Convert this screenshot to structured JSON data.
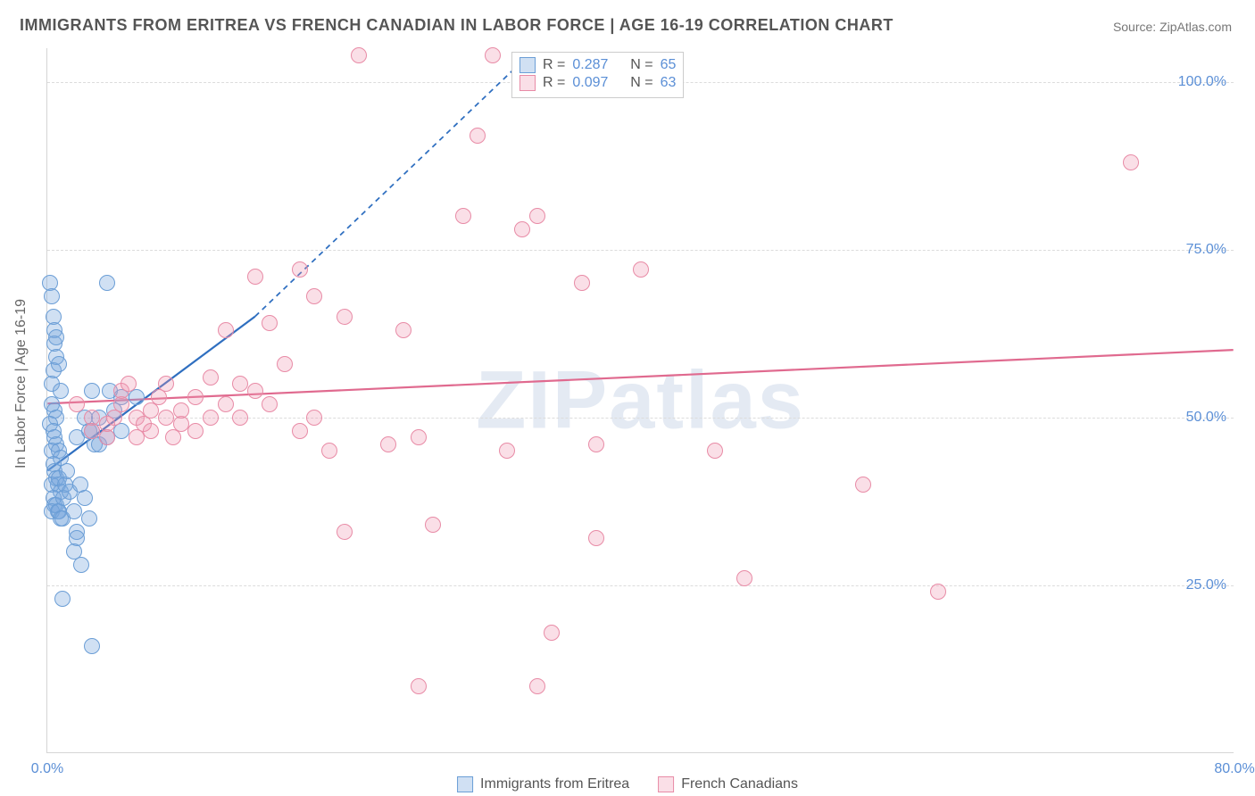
{
  "title": "IMMIGRANTS FROM ERITREA VS FRENCH CANADIAN IN LABOR FORCE | AGE 16-19 CORRELATION CHART",
  "source_label": "Source: ",
  "source_name": "ZipAtlas.com",
  "watermark": "ZIPatlas",
  "chart": {
    "type": "scatter",
    "background_color": "#ffffff",
    "grid_color": "#dcdcdc",
    "axis_color": "#d5d5d5",
    "y_axis_title": "In Labor Force | Age 16-19",
    "axis_title_color": "#666666",
    "axis_title_fontsize": 16,
    "tick_label_color": "#5b8fd6",
    "tick_label_fontsize": 16,
    "xlim": [
      0,
      80
    ],
    "ylim": [
      0,
      105
    ],
    "x_ticks": [
      {
        "v": 0,
        "label": "0.0%"
      },
      {
        "v": 80,
        "label": "80.0%"
      }
    ],
    "y_ticks": [
      {
        "v": 25,
        "label": "25.0%"
      },
      {
        "v": 50,
        "label": "50.0%"
      },
      {
        "v": 75,
        "label": "75.0%"
      },
      {
        "v": 100,
        "label": "100.0%"
      }
    ],
    "marker_radius": 9,
    "marker_border_width": 1.2,
    "series": [
      {
        "id": "eritrea",
        "label": "Immigrants from Eritrea",
        "fill": "rgba(120,165,220,0.35)",
        "stroke": "#6b9ed6",
        "R": "0.287",
        "N": "65",
        "trend": {
          "x1": 0,
          "y1": 42,
          "x2": 14,
          "y2": 65,
          "dash_x2": 32,
          "dash_y2": 103,
          "color": "#2f6fc0",
          "width": 2.2,
          "dash": "6 5"
        },
        "points": [
          [
            0.2,
            70
          ],
          [
            0.3,
            68
          ],
          [
            0.4,
            65
          ],
          [
            0.5,
            63
          ],
          [
            0.5,
            61
          ],
          [
            0.6,
            62
          ],
          [
            0.6,
            59
          ],
          [
            0.4,
            57
          ],
          [
            0.3,
            55
          ],
          [
            0.8,
            58
          ],
          [
            0.9,
            54
          ],
          [
            0.3,
            52
          ],
          [
            0.5,
            51
          ],
          [
            0.6,
            50
          ],
          [
            0.2,
            49
          ],
          [
            0.4,
            48
          ],
          [
            0.5,
            47
          ],
          [
            0.6,
            46
          ],
          [
            0.3,
            45
          ],
          [
            0.8,
            45
          ],
          [
            0.9,
            44
          ],
          [
            0.4,
            43
          ],
          [
            0.5,
            42
          ],
          [
            0.6,
            41
          ],
          [
            0.7,
            40
          ],
          [
            0.3,
            40
          ],
          [
            0.8,
            41
          ],
          [
            0.9,
            39
          ],
          [
            0.4,
            38
          ],
          [
            0.5,
            37
          ],
          [
            0.6,
            37
          ],
          [
            0.7,
            36
          ],
          [
            0.3,
            36
          ],
          [
            0.8,
            36
          ],
          [
            0.9,
            35
          ],
          [
            1.0,
            35
          ],
          [
            1.1,
            38
          ],
          [
            1.2,
            40
          ],
          [
            1.3,
            42
          ],
          [
            1.5,
            39
          ],
          [
            1.8,
            36
          ],
          [
            2.0,
            33
          ],
          [
            2.2,
            40
          ],
          [
            2.5,
            38
          ],
          [
            2.0,
            32
          ],
          [
            1.8,
            30
          ],
          [
            2.3,
            28
          ],
          [
            3.0,
            16
          ],
          [
            1.0,
            23
          ],
          [
            2.8,
            35
          ],
          [
            3.0,
            54
          ],
          [
            3.5,
            50
          ],
          [
            4.0,
            70
          ],
          [
            5.0,
            53
          ],
          [
            6.0,
            53
          ],
          [
            2.0,
            47
          ],
          [
            2.5,
            50
          ],
          [
            2.8,
            48
          ],
          [
            3.0,
            48
          ],
          [
            3.2,
            46
          ],
          [
            3.5,
            46
          ],
          [
            4.0,
            47
          ],
          [
            4.2,
            54
          ],
          [
            4.5,
            51
          ],
          [
            5.0,
            48
          ]
        ]
      },
      {
        "id": "french",
        "label": "French Canadians",
        "fill": "rgba(240,150,175,0.3)",
        "stroke": "#e88ba6",
        "R": "0.097",
        "N": "63",
        "trend": {
          "x1": 0,
          "y1": 52,
          "x2": 80,
          "y2": 60,
          "color": "#e06a8f",
          "width": 2.2
        },
        "points": [
          [
            2,
            52
          ],
          [
            3,
            50
          ],
          [
            3,
            48
          ],
          [
            4,
            47
          ],
          [
            4,
            49
          ],
          [
            4.5,
            50
          ],
          [
            5,
            52
          ],
          [
            5,
            54
          ],
          [
            5.5,
            55
          ],
          [
            6,
            50
          ],
          [
            6,
            47
          ],
          [
            6.5,
            49
          ],
          [
            7,
            51
          ],
          [
            7,
            48
          ],
          [
            7.5,
            53
          ],
          [
            8,
            50
          ],
          [
            8,
            55
          ],
          [
            8.5,
            47
          ],
          [
            9,
            49
          ],
          [
            9,
            51
          ],
          [
            10,
            53
          ],
          [
            10,
            48
          ],
          [
            11,
            56
          ],
          [
            11,
            50
          ],
          [
            12,
            52
          ],
          [
            12,
            63
          ],
          [
            13,
            55
          ],
          [
            13,
            50
          ],
          [
            14,
            54
          ],
          [
            14,
            71
          ],
          [
            15,
            52
          ],
          [
            15,
            64
          ],
          [
            16,
            58
          ],
          [
            17,
            72
          ],
          [
            17,
            48
          ],
          [
            18,
            68
          ],
          [
            18,
            50
          ],
          [
            19,
            45
          ],
          [
            20,
            65
          ],
          [
            20,
            33
          ],
          [
            21,
            104
          ],
          [
            23,
            46
          ],
          [
            24,
            63
          ],
          [
            25,
            10
          ],
          [
            25,
            47
          ],
          [
            26,
            34
          ],
          [
            28,
            80
          ],
          [
            29,
            92
          ],
          [
            30,
            104
          ],
          [
            31,
            45
          ],
          [
            32,
            78
          ],
          [
            33,
            10
          ],
          [
            33,
            80
          ],
          [
            34,
            18
          ],
          [
            36,
            70
          ],
          [
            37,
            46
          ],
          [
            37,
            32
          ],
          [
            40,
            72
          ],
          [
            45,
            45
          ],
          [
            47,
            26
          ],
          [
            55,
            40
          ],
          [
            60,
            24
          ],
          [
            73,
            88
          ]
        ]
      }
    ]
  },
  "legend_top": {
    "r_label": "R  =",
    "n_label": "N  =",
    "border_color": "#cccccc",
    "bg": "#ffffff"
  }
}
